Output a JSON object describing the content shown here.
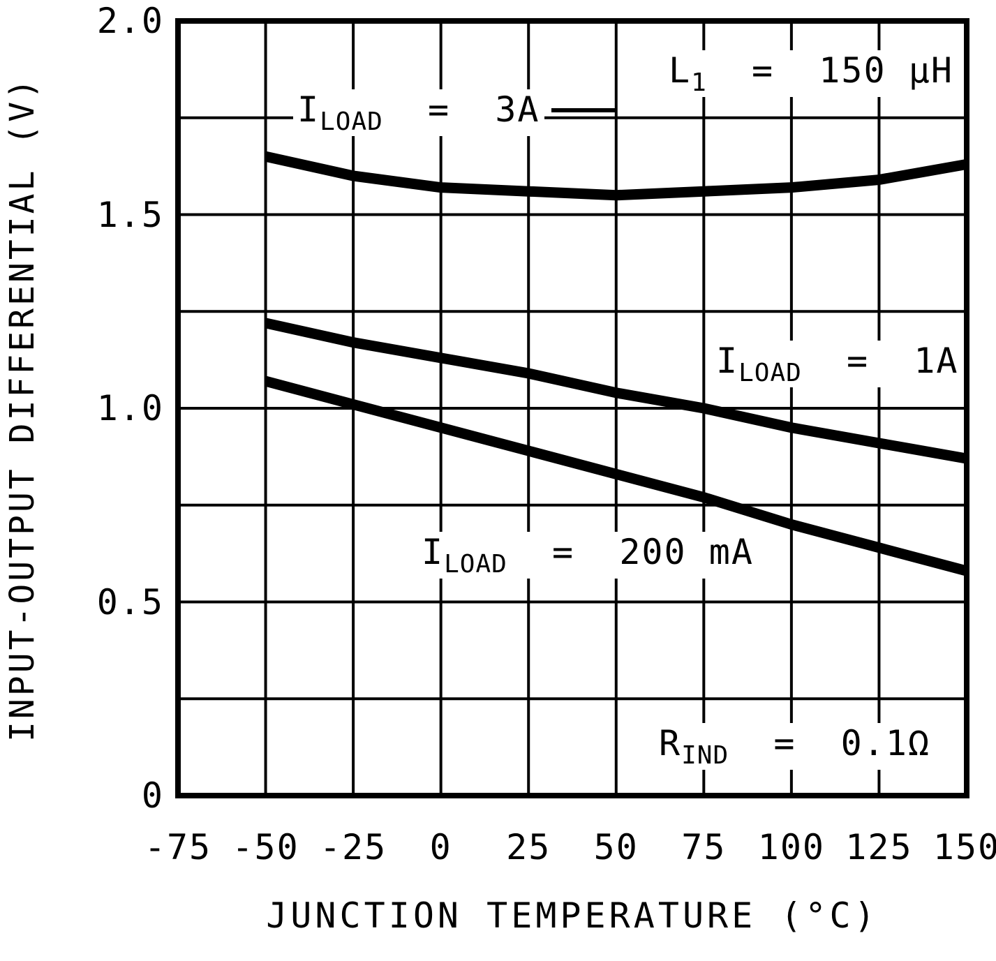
{
  "chart_data": {
    "type": "line",
    "title": "",
    "xlabel": "JUNCTION TEMPERATURE (°C)",
    "ylabel": "INPUT-OUTPUT DIFFERENTIAL (V)",
    "xlim": [
      -75,
      150
    ],
    "ylim": [
      0,
      2.0
    ],
    "x_grid_step": 25,
    "y_grid_step": 0.25,
    "grid": true,
    "legend_position": "none",
    "x_ticks": [
      -75,
      -50,
      -25,
      0,
      25,
      50,
      75,
      100,
      125,
      150
    ],
    "x_tick_labels": [
      "-75",
      "-50",
      "-25",
      "0",
      "25",
      "50",
      "75",
      "100",
      "125",
      "150"
    ],
    "y_ticks": [
      0,
      0.5,
      1.0,
      1.5,
      2.0
    ],
    "y_tick_labels": [
      "0",
      "0.5",
      "1.0",
      "1.5",
      "2.0"
    ],
    "series": [
      {
        "name": "ILOAD = 3A",
        "x": [
          -50,
          -25,
          0,
          25,
          50,
          75,
          100,
          125,
          150
        ],
        "y": [
          1.65,
          1.6,
          1.57,
          1.56,
          1.55,
          1.56,
          1.57,
          1.59,
          1.63
        ]
      },
      {
        "name": "ILOAD = 1A",
        "x": [
          -50,
          -25,
          0,
          25,
          50,
          75,
          100,
          125,
          150
        ],
        "y": [
          1.22,
          1.17,
          1.13,
          1.09,
          1.04,
          1.0,
          0.95,
          0.91,
          0.87
        ]
      },
      {
        "name": "ILOAD = 200 mA",
        "x": [
          -50,
          -25,
          0,
          25,
          50,
          75,
          100,
          125,
          150
        ],
        "y": [
          1.07,
          1.01,
          0.95,
          0.89,
          0.83,
          0.77,
          0.7,
          0.64,
          0.58
        ]
      }
    ],
    "annotations": {
      "load_3a": {
        "pre": "I",
        "sub": "LOAD",
        "post": "  =  3A"
      },
      "l1": {
        "pre": "L",
        "sub": "1",
        "post": "  =  150 µH"
      },
      "load_1a": {
        "pre": "I",
        "sub": "LOAD",
        "post": "  =  1A"
      },
      "load_200ma": {
        "pre": "I",
        "sub": "LOAD",
        "post": "  =  200 mA"
      },
      "rind": {
        "pre": "R",
        "sub": "IND",
        "post": "  =  0.1Ω"
      }
    },
    "colors": {
      "foreground": "#000000",
      "background": "#ffffff"
    }
  }
}
